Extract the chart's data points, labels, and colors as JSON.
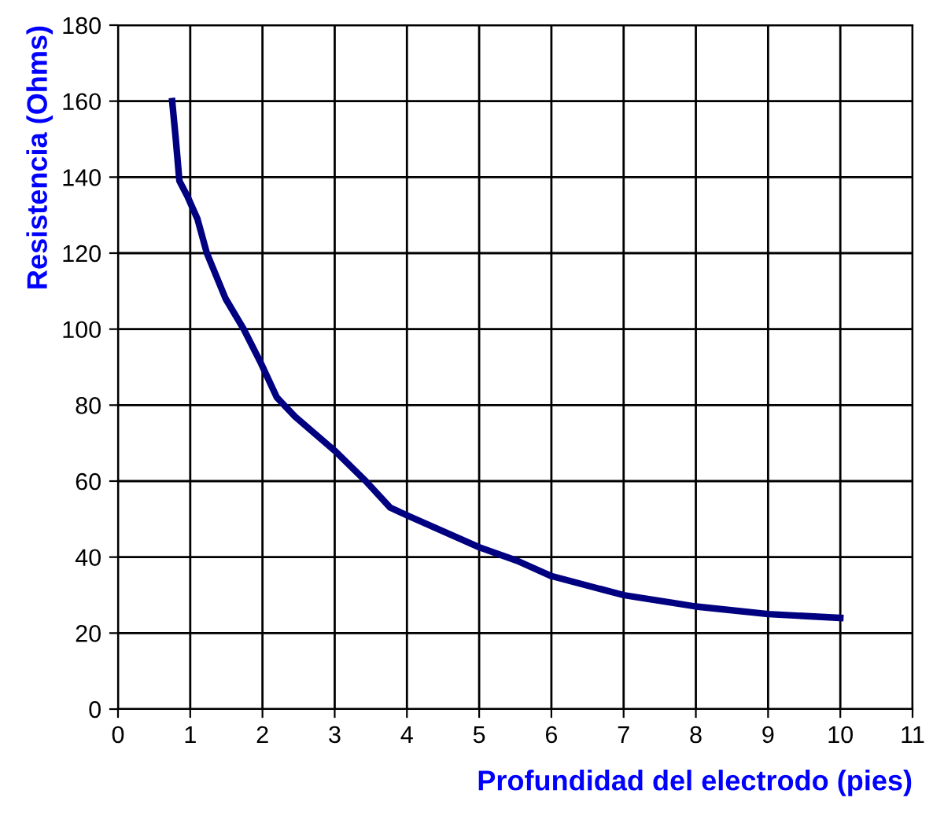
{
  "chart_data": {
    "type": "line",
    "xlabel": "Profundidad del electrodo (pies)",
    "ylabel": "Resistencia (Ohms)",
    "x": [
      0.75,
      0.8,
      0.85,
      0.96,
      1.1,
      1.23,
      1.49,
      1.74,
      1.98,
      2.2,
      2.45,
      3.0,
      3.43,
      3.77,
      4.0,
      5.0,
      5.53,
      6.0,
      7.0,
      8.0,
      9.0,
      10.0
    ],
    "series": [
      {
        "color": "#000080",
        "values": [
          160,
          150,
          139,
          135,
          129,
          120,
          108,
          100,
          91,
          82,
          77,
          68,
          60,
          53,
          51,
          42.6,
          39,
          35,
          30,
          27,
          25,
          24
        ]
      }
    ],
    "xlim": [
      0,
      11
    ],
    "xticks": [
      0,
      1,
      2,
      3,
      4,
      5,
      6,
      7,
      8,
      9,
      10,
      11
    ],
    "ylim": [
      0,
      180
    ],
    "yticks": [
      0,
      20,
      40,
      60,
      80,
      100,
      120,
      140,
      160,
      180
    ],
    "grid": true,
    "marker": "none",
    "line_style": "solid",
    "legend": false
  }
}
